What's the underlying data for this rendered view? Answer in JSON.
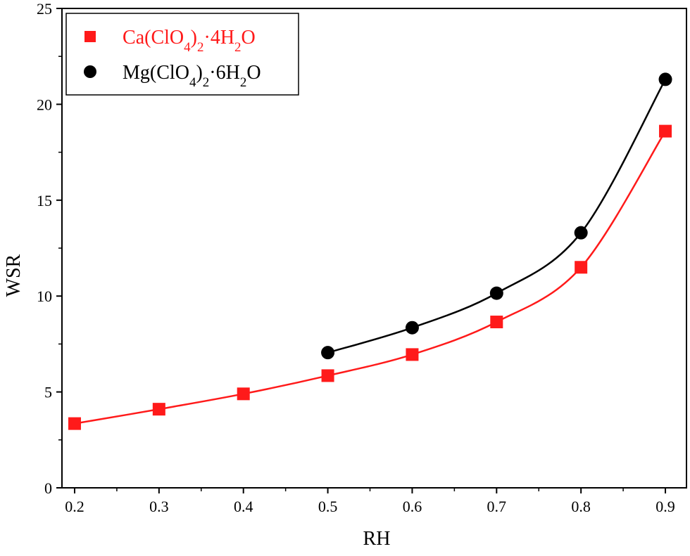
{
  "chart_data": {
    "type": "scatter",
    "xlabel": "RH",
    "ylabel": "WSR",
    "xlim": [
      0.185,
      0.925
    ],
    "ylim": [
      0,
      25
    ],
    "x_ticks": [
      "0.2",
      "0.3",
      "0.4",
      "0.5",
      "0.6",
      "0.7",
      "0.8",
      "0.9"
    ],
    "y_ticks": [
      "0",
      "5",
      "10",
      "15",
      "20",
      "25"
    ],
    "grid": false,
    "legend_position": "top-left",
    "series": [
      {
        "name": "Ca(ClO4)2·4H2O",
        "marker": "square",
        "color": "#ff1a1a",
        "fit_line": true,
        "x": [
          0.2,
          0.3,
          0.4,
          0.5,
          0.6,
          0.7,
          0.8,
          0.9
        ],
        "y": [
          3.35,
          4.1,
          4.9,
          5.85,
          6.95,
          8.65,
          11.5,
          18.6
        ]
      },
      {
        "name": "Mg(ClO4)2·6H2O",
        "marker": "circle",
        "color": "#000000",
        "fit_line": true,
        "x": [
          0.5,
          0.6,
          0.7,
          0.8,
          0.9
        ],
        "y": [
          7.05,
          8.35,
          10.15,
          13.3,
          21.3
        ]
      }
    ]
  }
}
